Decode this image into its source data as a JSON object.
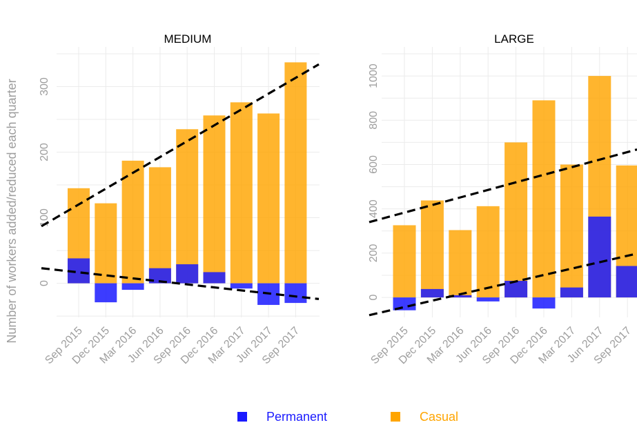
{
  "chart_data": {
    "type": "bar",
    "ylabel": "Number of workers added/reduced each quarter",
    "categories": [
      "Sep 2015",
      "Dec 2015",
      "Mar 2016",
      "Jun 2016",
      "Sep 2016",
      "Dec 2016",
      "Mar 2017",
      "Jun 2017",
      "Sep 2017"
    ],
    "colors": {
      "Permanent": "#1a1aff",
      "Casual": "#ffa500",
      "trend": "#000000"
    },
    "legend": {
      "position": "bottom",
      "entries": [
        "Permanent",
        "Casual"
      ]
    },
    "grid": true,
    "panels": [
      {
        "title": "MEDIUM",
        "ylim": [
          -52,
          350
        ],
        "yticks": [
          0,
          100,
          200,
          300
        ],
        "series": [
          {
            "name": "Permanent",
            "values": [
              38,
              -29,
              -10,
              23,
              29,
              17,
              -8,
              -33,
              -30
            ]
          },
          {
            "name": "Casual",
            "values": [
              145,
              122,
              187,
              177,
              235,
              256,
              276,
              259,
              337
            ]
          }
        ],
        "trend_lines": [
          {
            "series": "Casual",
            "start": 87,
            "end": 334
          },
          {
            "series": "Permanent",
            "start": 23,
            "end": -24
          }
        ]
      },
      {
        "title": "LARGE",
        "ylim": [
          -90,
          1100
        ],
        "yticks": [
          0,
          200,
          400,
          600,
          800,
          1000
        ],
        "series": [
          {
            "name": "Permanent",
            "values": [
              -58,
              38,
              10,
              -18,
              75,
              -50,
              45,
              365,
              142
            ]
          },
          {
            "name": "Casual",
            "values": [
              326,
              438,
              304,
              412,
              700,
              890,
              600,
              1000,
              596
            ]
          }
        ],
        "trend_lines": [
          {
            "series": "Casual",
            "start": 340,
            "end": 668
          },
          {
            "series": "Permanent",
            "start": -80,
            "end": 198
          }
        ]
      }
    ]
  }
}
